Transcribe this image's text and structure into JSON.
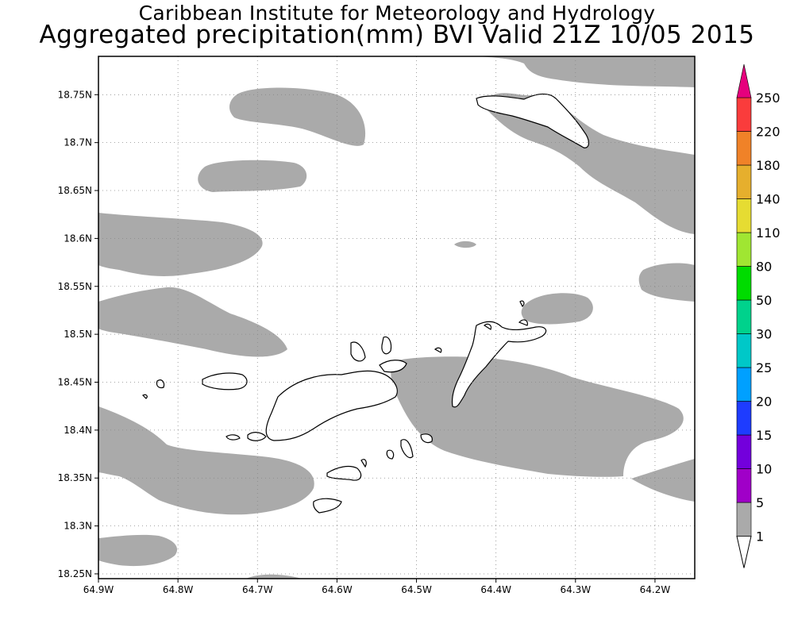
{
  "title": {
    "line1": "Caribbean Institute for Meteorology and Hydrology",
    "line2": "Aggregated precipitation(mm) BVI Valid 21Z 10/05 2015"
  },
  "map": {
    "lon_range": [
      -64.9,
      -64.15
    ],
    "lat_range": [
      18.245,
      18.79
    ],
    "x_ticks": [
      {
        "value": -64.9,
        "label": "64.9W"
      },
      {
        "value": -64.8,
        "label": "64.8W"
      },
      {
        "value": -64.7,
        "label": "64.7W"
      },
      {
        "value": -64.6,
        "label": "64.6W"
      },
      {
        "value": -64.5,
        "label": "64.5W"
      },
      {
        "value": -64.4,
        "label": "64.4W"
      },
      {
        "value": -64.3,
        "label": "64.3W"
      },
      {
        "value": -64.2,
        "label": "64.2W"
      }
    ],
    "y_ticks": [
      {
        "value": 18.75,
        "label": "18.75N"
      },
      {
        "value": 18.7,
        "label": "18.7N"
      },
      {
        "value": 18.65,
        "label": "18.65N"
      },
      {
        "value": 18.6,
        "label": "18.6N"
      },
      {
        "value": 18.55,
        "label": "18.55N"
      },
      {
        "value": 18.5,
        "label": "18.5N"
      },
      {
        "value": 18.45,
        "label": "18.45N"
      },
      {
        "value": 18.4,
        "label": "18.4N"
      },
      {
        "value": 18.35,
        "label": "18.35N"
      },
      {
        "value": 18.3,
        "label": "18.3N"
      },
      {
        "value": 18.25,
        "label": "18.25N"
      }
    ],
    "grid": true,
    "precip_fill_color": "#aaaaaa",
    "land_color": "#ffffff",
    "coast_color": "#000000"
  },
  "colorbar": {
    "levels": [
      "1",
      "5",
      "10",
      "15",
      "20",
      "25",
      "30",
      "50",
      "80",
      "110",
      "140",
      "180",
      "220",
      "250"
    ],
    "colors": [
      "#aaaaaa",
      "#a000c8",
      "#7300dc",
      "#1e3cff",
      "#00a0ff",
      "#00c8c8",
      "#00d28c",
      "#00dc00",
      "#a0e632",
      "#e6dc32",
      "#e6af2d",
      "#f08228",
      "#fa3c3c",
      "#e6007d"
    ]
  }
}
